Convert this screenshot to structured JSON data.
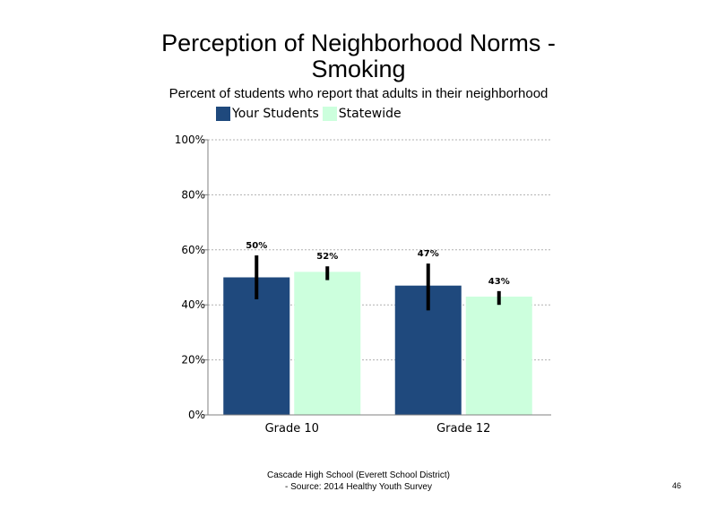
{
  "chart_data": {
    "type": "bar",
    "title_line1": "Perception of Neighborhood Norms -",
    "title_line2": "Smoking",
    "subtitle": "Percent of students who report that adults in their neighborhood",
    "categories": [
      "Grade 10",
      "Grade 12"
    ],
    "series": [
      {
        "name": "Your Students",
        "color": "#1f497d",
        "values": [
          50,
          47
        ],
        "labels": [
          "50%",
          "47%"
        ],
        "error_low": [
          42,
          38
        ],
        "error_high": [
          58,
          55
        ]
      },
      {
        "name": "Statewide",
        "color": "#ccffdd",
        "values": [
          52,
          43
        ],
        "labels": [
          "52%",
          "43%"
        ],
        "error_low": [
          49,
          40
        ],
        "error_high": [
          54,
          45
        ]
      }
    ],
    "ylim": [
      0,
      100
    ],
    "yticks": [
      0,
      20,
      40,
      60,
      80,
      100
    ],
    "ytick_labels": [
      "0%",
      "20%",
      "40%",
      "60%",
      "80%",
      "100%"
    ],
    "grid": true,
    "legend_position": "top"
  },
  "footer": {
    "line1": "Cascade High School (Everett School District)",
    "line2": "- Source: 2014 Healthy Youth Survey"
  },
  "page_number": "46"
}
